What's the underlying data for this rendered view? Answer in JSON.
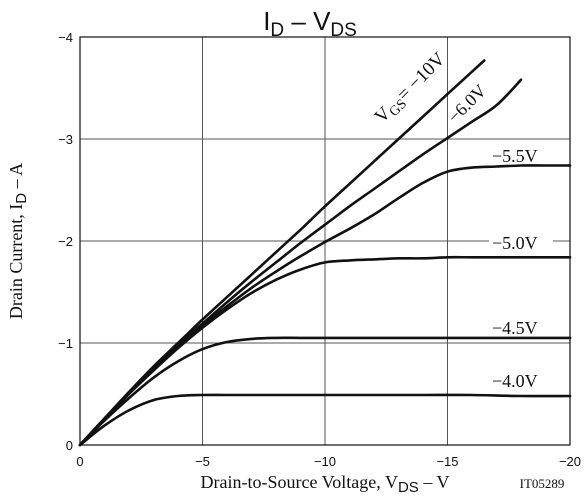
{
  "chart_data": {
    "type": "line",
    "title": {
      "main": "I",
      "sub1": "D",
      "mid": " – V",
      "sub2": "DS"
    },
    "xlabel": {
      "pre": "Drain-to-Source Voltage, V",
      "sub": "DS",
      "post": " – V"
    },
    "ylabel": {
      "pre": "Drain Current, I",
      "sub": "D",
      "post": " – A"
    },
    "xlim": [
      0,
      -20
    ],
    "ylim": [
      0,
      -4
    ],
    "xticks": [
      {
        "value": 0,
        "label": "0"
      },
      {
        "value": -5,
        "label": "−5"
      },
      {
        "value": -10,
        "label": "−10"
      },
      {
        "value": -15,
        "label": "−15"
      },
      {
        "value": -20,
        "label": "−20"
      }
    ],
    "yticks": [
      {
        "value": 0,
        "label": "0"
      },
      {
        "value": -1,
        "label": "−1"
      },
      {
        "value": -2,
        "label": "−2"
      },
      {
        "value": -3,
        "label": "−3"
      },
      {
        "value": -4,
        "label": "−4"
      }
    ],
    "grid": true,
    "figure_code": "IT05289",
    "series": [
      {
        "name": "VGS=−10V",
        "x": [
          0,
          -1,
          -2,
          -3,
          -4,
          -5,
          -6,
          -7,
          -8,
          -9,
          -10,
          -11,
          -12,
          -13,
          -14,
          -15,
          -16,
          -16.5
        ],
        "y": [
          0,
          -0.26,
          -0.52,
          -0.77,
          -1.0,
          -1.23,
          -1.45,
          -1.67,
          -1.89,
          -2.11,
          -2.34,
          -2.56,
          -2.78,
          -3.0,
          -3.22,
          -3.44,
          -3.66,
          -3.77
        ]
      },
      {
        "name": "−6.0V",
        "x": [
          0,
          -1,
          -2,
          -3,
          -4,
          -5,
          -6,
          -7,
          -8,
          -9,
          -10,
          -11,
          -12,
          -13,
          -14,
          -15,
          -16,
          -17,
          -18
        ],
        "y": [
          0,
          -0.26,
          -0.51,
          -0.76,
          -0.98,
          -1.19,
          -1.4,
          -1.6,
          -1.79,
          -1.98,
          -2.16,
          -2.34,
          -2.51,
          -2.68,
          -2.85,
          -3.01,
          -3.17,
          -3.33,
          -3.58
        ]
      },
      {
        "name": "−5.5V",
        "x": [
          0,
          -1,
          -2,
          -3,
          -4,
          -5,
          -6,
          -7,
          -8,
          -9,
          -10,
          -11,
          -12,
          -13,
          -14,
          -15,
          -16,
          -17,
          -18,
          -19,
          -20
        ],
        "y": [
          0,
          -0.26,
          -0.51,
          -0.75,
          -0.97,
          -1.17,
          -1.36,
          -1.54,
          -1.7,
          -1.85,
          -1.99,
          -2.12,
          -2.26,
          -2.42,
          -2.57,
          -2.68,
          -2.72,
          -2.73,
          -2.74,
          -2.74,
          -2.74
        ]
      },
      {
        "name": "−5.0V",
        "x": [
          0,
          -1,
          -2,
          -3,
          -4,
          -5,
          -6,
          -7,
          -8,
          -9,
          -10,
          -11,
          -12,
          -13,
          -14,
          -15,
          -16,
          -17,
          -18,
          -19,
          -20
        ],
        "y": [
          0,
          -0.25,
          -0.5,
          -0.73,
          -0.95,
          -1.15,
          -1.33,
          -1.49,
          -1.62,
          -1.72,
          -1.79,
          -1.81,
          -1.82,
          -1.83,
          -1.83,
          -1.84,
          -1.84,
          -1.84,
          -1.84,
          -1.84,
          -1.84
        ]
      },
      {
        "name": "−4.5V",
        "x": [
          0,
          -1,
          -2,
          -3,
          -4,
          -5,
          -6,
          -7,
          -8,
          -9,
          -10,
          -12,
          -14,
          -16,
          -18,
          -20
        ],
        "y": [
          0,
          -0.24,
          -0.46,
          -0.66,
          -0.82,
          -0.94,
          -1.01,
          -1.04,
          -1.05,
          -1.05,
          -1.05,
          -1.05,
          -1.05,
          -1.05,
          -1.05,
          -1.05
        ]
      },
      {
        "name": "−4.0V",
        "x": [
          0,
          -1,
          -2,
          -3,
          -4,
          -5,
          -6,
          -8,
          -10,
          -12,
          -14,
          -16,
          -18,
          -20
        ],
        "y": [
          0,
          -0.19,
          -0.34,
          -0.44,
          -0.48,
          -0.49,
          -0.49,
          -0.49,
          -0.49,
          -0.49,
          -0.49,
          -0.49,
          -0.48,
          -0.48
        ]
      }
    ],
    "curve_labels": {
      "vgs_prefix": "V",
      "vgs_sub": "GS",
      "vgs_suffix": "= −10V",
      "v60": "−6.0V",
      "v55": "−5.5V",
      "v50": "−5.0V",
      "v45": "−4.5V",
      "v40": "−4.0V"
    },
    "style": {
      "line_color": "#111111",
      "grid_color": "#555555",
      "background": "#ffffff"
    }
  }
}
